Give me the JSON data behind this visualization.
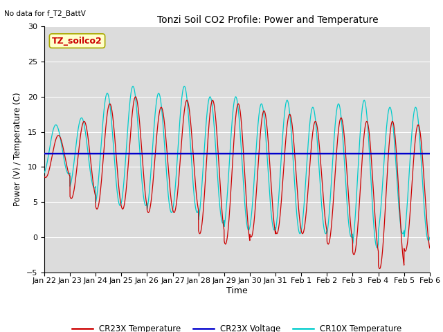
{
  "title": "Tonzi Soil CO2 Profile: Power and Temperature",
  "subtitle": "No data for f_T2_BattV",
  "xlabel": "Time",
  "ylabel": "Power (V) / Temperature (C)",
  "ylim": [
    -5,
    30
  ],
  "yticks": [
    -5,
    0,
    5,
    10,
    15,
    20,
    25,
    30
  ],
  "bg_color": "#dcdcdc",
  "cr23x_temp_color": "#cc0000",
  "cr23x_volt_color": "#0000cc",
  "cr10x_temp_color": "#00cccc",
  "voltage_value": 11.9,
  "annotation_label": "TZ_soilco2",
  "annotation_color": "#cc0000",
  "annotation_bg": "#ffffcc",
  "legend_labels": [
    "CR23X Temperature",
    "CR23X Voltage",
    "CR10X Temperature"
  ],
  "x_tick_labels": [
    "Jan 22",
    "Jan 23",
    "Jan 24",
    "Jan 25",
    "Jan 26",
    "Jan 27",
    "Jan 28",
    "Jan 29",
    "Jan 30",
    "Jan 31",
    "Feb 1",
    "Feb 2",
    "Feb 3",
    "Feb 4",
    "Feb 5",
    "Feb 6"
  ]
}
